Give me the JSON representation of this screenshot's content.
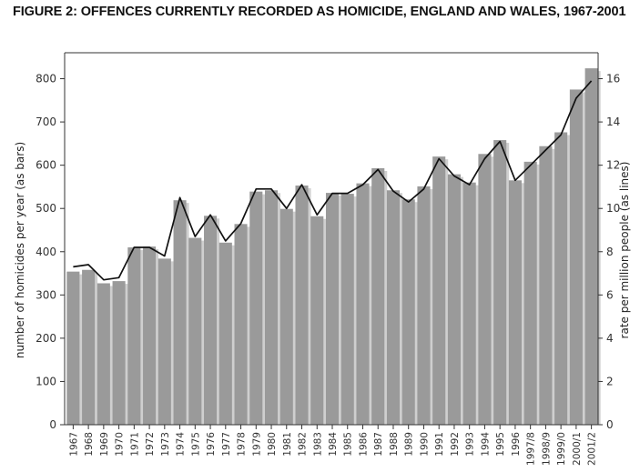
{
  "chart_data": {
    "type": "bar",
    "title": "FIGURE 2: OFFENCES CURRENTLY RECORDED AS HOMICIDE, ENGLAND AND WALES, 1967-2001",
    "ylabel": "number of homicides per year (as bars)",
    "y2label": "rate per million people (as lines)",
    "ylim": [
      0,
      860
    ],
    "y2lim": [
      0,
      17.2
    ],
    "yticks": [
      0,
      100,
      200,
      300,
      400,
      500,
      600,
      700,
      800
    ],
    "y2ticks": [
      0,
      2,
      4,
      6,
      8,
      10,
      12,
      14,
      16
    ],
    "grid": false,
    "legend": "none",
    "categories": [
      "1967",
      "1968",
      "1969",
      "1970",
      "1971",
      "1972",
      "1973",
      "1974",
      "1975",
      "1976",
      "1977",
      "1978",
      "1979",
      "1980",
      "1981",
      "1982",
      "1983",
      "1984",
      "1985",
      "1986",
      "1987",
      "1988",
      "1989",
      "1990",
      "1991",
      "1992",
      "1993",
      "1994",
      "1995",
      "1996",
      "1997/8",
      "1998/9",
      "1999/0",
      "2000/1",
      "2001/2"
    ],
    "series": [
      {
        "type": "bar",
        "axis": "left",
        "values": [
          354,
          358,
          327,
          332,
          410,
          412,
          384,
          519,
          432,
          483,
          421,
          464,
          539,
          542,
          499,
          553,
          482,
          536,
          534,
          558,
          593,
          542,
          521,
          551,
          620,
          579,
          560,
          626,
          658,
          565,
          608,
          644,
          676,
          775,
          824
        ]
      },
      {
        "type": "line",
        "axis": "right",
        "values": [
          7.3,
          7.4,
          6.7,
          6.8,
          8.2,
          8.2,
          7.8,
          10.5,
          8.7,
          9.7,
          8.5,
          9.3,
          10.9,
          10.9,
          10.0,
          11.1,
          9.7,
          10.7,
          10.7,
          11.1,
          11.8,
          10.8,
          10.3,
          10.9,
          12.3,
          11.5,
          11.1,
          12.3,
          13.1,
          11.3,
          12.0,
          12.7,
          13.4,
          15.1,
          15.9
        ]
      }
    ],
    "colors": {
      "bar": "#9a9a9a",
      "bar_shadow": "#cfcfcf",
      "line": "#111111",
      "axis": "#333333"
    }
  }
}
